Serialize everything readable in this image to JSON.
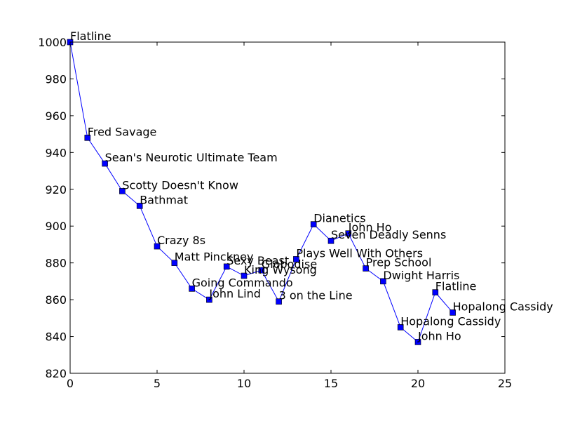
{
  "chart_data": {
    "type": "line",
    "title": "",
    "xlabel": "",
    "ylabel": "",
    "xlim": [
      0,
      25
    ],
    "ylim": [
      820,
      1000
    ],
    "xticks": [
      0,
      5,
      10,
      15,
      20,
      25
    ],
    "yticks": [
      820,
      840,
      860,
      880,
      900,
      920,
      940,
      960,
      980,
      1000
    ],
    "grid": false,
    "line_color": "#0000ff",
    "marker_color": "#0000ff",
    "marker": "square",
    "series": [
      {
        "points": [
          {
            "x": 0,
            "y": 1000,
            "label": "Flatline"
          },
          {
            "x": 1,
            "y": 948,
            "label": "Fred Savage"
          },
          {
            "x": 2,
            "y": 934,
            "label": "Sean's Neurotic Ultimate Team"
          },
          {
            "x": 3,
            "y": 919,
            "label": "Scotty Doesn't Know"
          },
          {
            "x": 4,
            "y": 911,
            "label": "Bathmat"
          },
          {
            "x": 5,
            "y": 889,
            "label": "Crazy 8s"
          },
          {
            "x": 6,
            "y": 880,
            "label": "Matt Pinckney"
          },
          {
            "x": 7,
            "y": 866,
            "label": "Going Commando"
          },
          {
            "x": 8,
            "y": 860,
            "label": "John Lind"
          },
          {
            "x": 9,
            "y": 878,
            "label": "Sexy Beast"
          },
          {
            "x": 10,
            "y": 873,
            "label": "King Wysong"
          },
          {
            "x": 11,
            "y": 876,
            "label": "Globodise"
          },
          {
            "x": 12,
            "y": 859,
            "label": "3 on the Line"
          },
          {
            "x": 13,
            "y": 882,
            "label": "Plays Well With Others"
          },
          {
            "x": 14,
            "y": 901,
            "label": "Dianetics"
          },
          {
            "x": 15,
            "y": 892,
            "label": "Seven Deadly Senns"
          },
          {
            "x": 16,
            "y": 896,
            "label": "John Ho"
          },
          {
            "x": 17,
            "y": 877,
            "label": "Prep School"
          },
          {
            "x": 18,
            "y": 870,
            "label": "Dwight Harris"
          },
          {
            "x": 19,
            "y": 845,
            "label": "Hopalong Cassidy"
          },
          {
            "x": 20,
            "y": 837,
            "label": "John Ho"
          },
          {
            "x": 21,
            "y": 864,
            "label": "Flatline"
          },
          {
            "x": 22,
            "y": 853,
            "label": "Hopalong Cassidy"
          }
        ]
      }
    ]
  }
}
